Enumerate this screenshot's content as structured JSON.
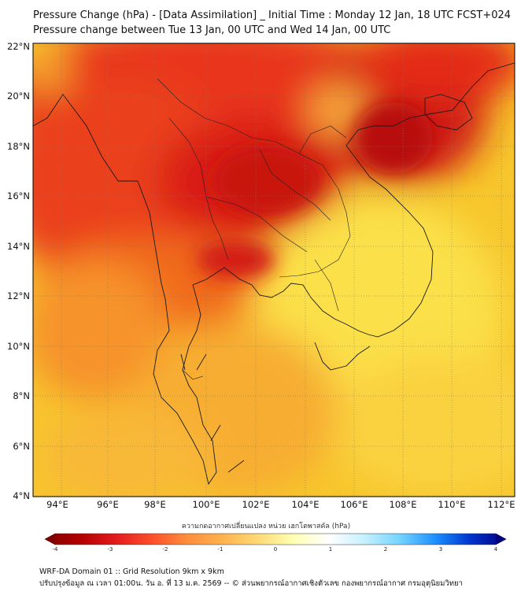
{
  "header": {
    "title_line1": "Pressure Change (hPa) - [Data Assimilation] _ Initial Time : Monday 12 Jan, 18 UTC FCST+024",
    "title_line2": "Pressure change between Tue 13 Jan, 00 UTC and Wed 14 Jan, 00 UTC"
  },
  "map": {
    "lat_ticks": [
      "22°N",
      "20°N",
      "18°N",
      "16°N",
      "14°N",
      "12°N",
      "10°N",
      "8°N",
      "6°N",
      "4°N"
    ],
    "lon_ticks": [
      "94°E",
      "96°E",
      "98°E",
      "100°E",
      "102°E",
      "104°E",
      "106°E",
      "108°E",
      "110°E",
      "112°E"
    ],
    "lat_range": [
      4,
      22.3
    ],
    "lon_range": [
      93,
      112.5
    ]
  },
  "colorbar": {
    "label": "ความกดอากาศเปลี่ยนแปลง หน่วย เฮกโตพาสคัล (hPa)",
    "tick_labels": [
      "-4",
      "-3",
      "-2",
      "-1",
      "0",
      "1",
      "2",
      "3",
      "4"
    ],
    "range": [
      -4,
      4
    ],
    "colors": [
      "#7f0000",
      "#b30000",
      "#e31a1c",
      "#fc4e2a",
      "#fd8d3c",
      "#feb24c",
      "#fed976",
      "#ffffb2",
      "#ffffff",
      "#c6f0ff",
      "#74d4ff",
      "#1e90ff",
      "#0033cc",
      "#000080"
    ]
  },
  "footer": {
    "line1": "WRF-DA Domain 01 :: Grid Resolution 9km x 9km",
    "line2": "ปรับปรุงข้อมูล ณ เวลา 01:00น. วัน อ. ที่ 13 ม.ค. 2569 -- © ส่วนพยากรณ์อากาศเชิงตัวเลข กองพยากรณ์อากาศ กรมอุตุนิยมวิทยา"
  }
}
